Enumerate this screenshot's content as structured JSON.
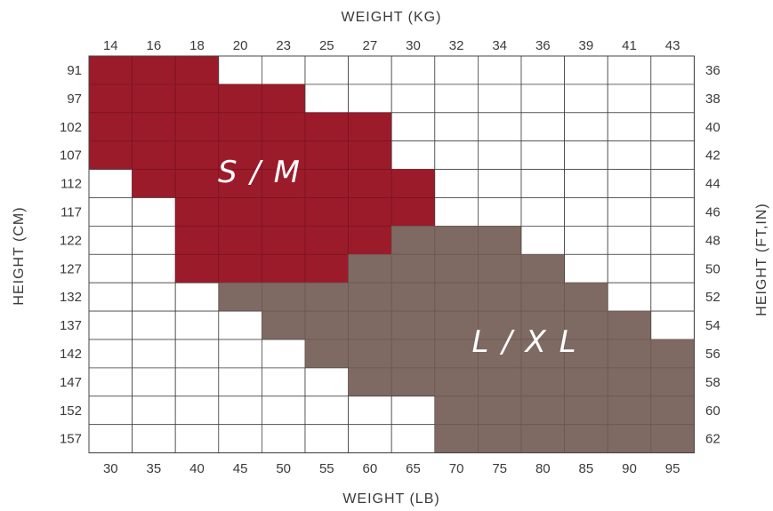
{
  "chart_data": {
    "type": "heatmap",
    "title": "",
    "top_axis_title": "WEIGHT (KG)",
    "bottom_axis_title": "WEIGHT (LB)",
    "left_axis_title": "HEIGHT (CM)",
    "right_axis_title": "HEIGHT (FT,IN)",
    "weight_kg": [
      "14",
      "16",
      "18",
      "20",
      "23",
      "25",
      "27",
      "30",
      "32",
      "34",
      "36",
      "39",
      "41",
      "43"
    ],
    "weight_lb": [
      "30",
      "35",
      "40",
      "45",
      "50",
      "55",
      "60",
      "65",
      "70",
      "75",
      "80",
      "85",
      "90",
      "95"
    ],
    "height_cm": [
      "91",
      "97",
      "102",
      "107",
      "112",
      "117",
      "122",
      "127",
      "132",
      "137",
      "142",
      "147",
      "152",
      "157"
    ],
    "height_ftin": [
      "36",
      "38",
      "40",
      "42",
      "44",
      "46",
      "48",
      "50",
      "52",
      "54",
      "56",
      "58",
      "60",
      "62"
    ],
    "zones": [
      {
        "name": "S / M",
        "display": "S / M",
        "color": "#9b1b2a"
      },
      {
        "name": "L / XL",
        "display": "L / X L",
        "color": "#7e6a63"
      }
    ],
    "row_ranges": [
      {
        "height_cm": "91",
        "sm": [
          0,
          2
        ],
        "lxl": null
      },
      {
        "height_cm": "97",
        "sm": [
          0,
          4
        ],
        "lxl": null
      },
      {
        "height_cm": "102",
        "sm": [
          0,
          6
        ],
        "lxl": null
      },
      {
        "height_cm": "107",
        "sm": [
          0,
          6
        ],
        "lxl": null
      },
      {
        "height_cm": "112",
        "sm": [
          1,
          7
        ],
        "lxl": null
      },
      {
        "height_cm": "117",
        "sm": [
          2,
          7
        ],
        "lxl": null
      },
      {
        "height_cm": "122",
        "sm": [
          2,
          6
        ],
        "lxl": [
          7,
          9
        ]
      },
      {
        "height_cm": "127",
        "sm": [
          2,
          5
        ],
        "lxl": [
          6,
          10
        ]
      },
      {
        "height_cm": "132",
        "sm": null,
        "lxl": [
          3,
          11
        ]
      },
      {
        "height_cm": "137",
        "sm": null,
        "lxl": [
          4,
          12
        ]
      },
      {
        "height_cm": "142",
        "sm": null,
        "lxl": [
          5,
          13
        ]
      },
      {
        "height_cm": "147",
        "sm": null,
        "lxl": [
          6,
          13
        ]
      },
      {
        "height_cm": "152",
        "sm": null,
        "lxl": [
          8,
          13
        ]
      },
      {
        "height_cm": "157",
        "sm": null,
        "lxl": [
          8,
          13
        ]
      }
    ],
    "empty_color": "#ffffff",
    "grid_color": "#444444",
    "inner_grid_color_sm": "#7a1420",
    "inner_grid_color_lxl": "#6a5851"
  }
}
